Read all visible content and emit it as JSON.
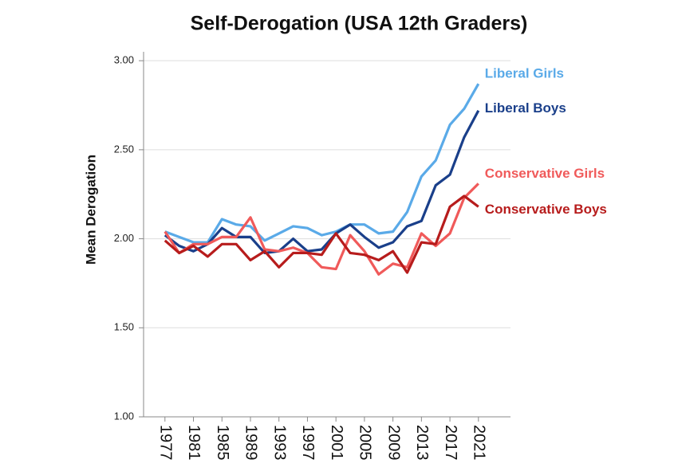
{
  "chart_data": {
    "type": "line",
    "title": "Self-Derogation (USA 12th Graders)",
    "y_label": "Mean Derogation",
    "x": [
      1977,
      1979,
      1981,
      1983,
      1985,
      1987,
      1989,
      1991,
      1993,
      1995,
      1997,
      1999,
      2001,
      2003,
      2005,
      2007,
      2009,
      2011,
      2013,
      2015,
      2017,
      2019,
      2021
    ],
    "series": [
      {
        "name": "Liberal Girls",
        "color": "#5aaae8",
        "values": [
          2.04,
          2.01,
          1.98,
          1.98,
          2.11,
          2.08,
          2.07,
          1.99,
          2.03,
          2.07,
          2.06,
          2.02,
          2.04,
          2.08,
          2.08,
          2.03,
          2.04,
          2.15,
          2.35,
          2.44,
          2.64,
          2.73,
          2.87
        ]
      },
      {
        "name": "Liberal Boys",
        "color": "#1a3f8a",
        "values": [
          2.02,
          1.96,
          1.93,
          1.97,
          2.06,
          2.01,
          2.01,
          1.92,
          1.93,
          2.0,
          1.93,
          1.94,
          2.03,
          2.08,
          2.01,
          1.95,
          1.98,
          2.07,
          2.1,
          2.3,
          2.36,
          2.57,
          2.72
        ]
      },
      {
        "name": "Conservative Girls",
        "color": "#f05a5a",
        "values": [
          2.04,
          1.92,
          1.97,
          1.97,
          2.01,
          2.01,
          2.12,
          1.94,
          1.93,
          1.95,
          1.92,
          1.84,
          1.83,
          2.02,
          1.93,
          1.8,
          1.86,
          1.84,
          2.03,
          1.96,
          2.03,
          2.23,
          2.31
        ]
      },
      {
        "name": "Conservative Boys",
        "color": "#b71c1c",
        "values": [
          1.99,
          1.92,
          1.96,
          1.9,
          1.97,
          1.97,
          1.88,
          1.93,
          1.84,
          1.92,
          1.92,
          1.91,
          2.03,
          1.92,
          1.91,
          1.88,
          1.93,
          1.81,
          1.98,
          1.97,
          2.18,
          2.24,
          2.18
        ]
      }
    ],
    "xlim": [
      1974,
      2025.5
    ],
    "xticks": [
      1977,
      1981,
      1985,
      1989,
      1993,
      1997,
      2001,
      2005,
      2009,
      2013,
      2017,
      2021
    ],
    "ylim": [
      1,
      3.05
    ],
    "yticks": [
      {
        "value": 1,
        "label": "1.00"
      },
      {
        "value": 1.5,
        "label": "1.50"
      },
      {
        "value": 2,
        "label": "2.00"
      },
      {
        "value": 2.5,
        "label": "2.50"
      },
      {
        "value": 3,
        "label": "3.00"
      }
    ],
    "grid": true
  }
}
